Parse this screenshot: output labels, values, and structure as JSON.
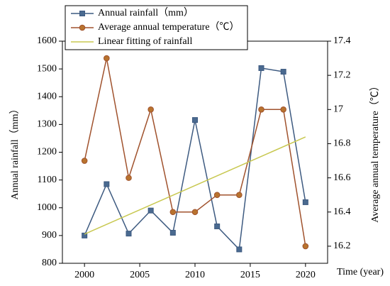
{
  "chart_data": {
    "type": "line",
    "x": [
      2000,
      2002,
      2004,
      2006,
      2008,
      2010,
      2012,
      2014,
      2016,
      2018,
      2020
    ],
    "xlabel": "Time (year)",
    "ylabel": "Annual rainfall（mm）",
    "y2label": "Average annual temperature（℃）",
    "xlim": [
      1998,
      2022
    ],
    "xticks": [
      2000,
      2005,
      2010,
      2015,
      2020
    ],
    "ylim": [
      800,
      1600
    ],
    "yticks": [
      800,
      900,
      1000,
      1100,
      1200,
      1300,
      1400,
      1500,
      1600
    ],
    "y2lim": [
      16.1,
      17.4
    ],
    "y2ticks": [
      16.2,
      16.4,
      16.6,
      16.8,
      17.0,
      17.2,
      17.4
    ],
    "legend": "upper left",
    "series": [
      {
        "name": "Annual rainfall（mm）",
        "color": "#3d5a80",
        "marker": "square",
        "values": [
          900,
          1085,
          907,
          990,
          910,
          1316,
          933,
          850,
          1503,
          1490,
          1020
        ]
      },
      {
        "name": "Average annual temperature（℃）",
        "color": "#a0522d",
        "marker": "circle",
        "axis": "y2",
        "values": [
          16.7,
          17.3,
          16.6,
          17.0,
          16.4,
          16.4,
          16.5,
          16.5,
          17.0,
          17.0,
          16.2
        ]
      },
      {
        "name": "Linear fitting of rainfall",
        "color": "#c8c850",
        "x": [
          2000,
          2020
        ],
        "values": [
          905,
          1255
        ]
      }
    ]
  }
}
